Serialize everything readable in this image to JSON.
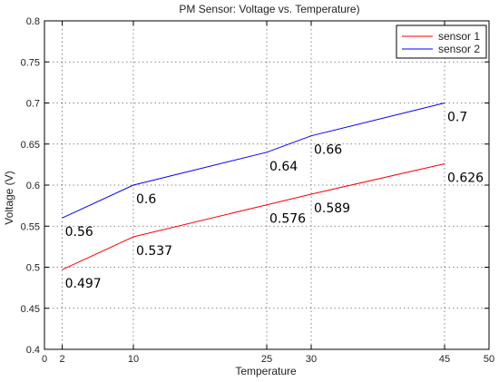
{
  "chart_data": {
    "type": "line",
    "title": "PM Sensor: Voltage vs. Temperature)",
    "xlabel": "Temperature",
    "ylabel": "Voltage (V)",
    "xlim": [
      0,
      50
    ],
    "ylim": [
      0.4,
      0.8
    ],
    "xticks": [
      0,
      2,
      10,
      25,
      30,
      45,
      50
    ],
    "yticks": [
      0.4,
      0.45,
      0.5,
      0.55,
      0.6,
      0.65,
      0.7,
      0.75,
      0.8
    ],
    "grid": true,
    "legend_position": "top-right",
    "x": [
      2,
      10,
      25,
      30,
      45
    ],
    "series": [
      {
        "name": "sensor 1",
        "color": "#ff0000",
        "values": [
          0.497,
          0.537,
          0.576,
          0.589,
          0.626
        ],
        "labels": [
          "0.497",
          "0.537",
          "0.576",
          "0.589",
          "0.626"
        ]
      },
      {
        "name": "sensor 2",
        "color": "#0000ff",
        "values": [
          0.56,
          0.6,
          0.64,
          0.66,
          0.7
        ],
        "labels": [
          "0.56",
          "0.6",
          "0.64",
          "0.66",
          "0.7"
        ]
      }
    ]
  }
}
